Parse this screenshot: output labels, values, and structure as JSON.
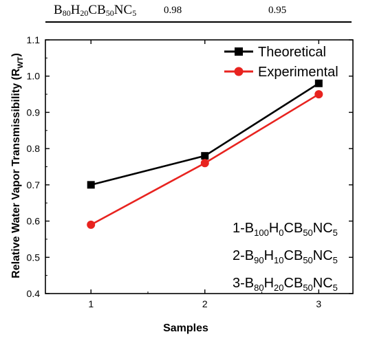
{
  "table_row": {
    "sample": {
      "b": "80",
      "h": "20",
      "cb": "50",
      "nc": "5"
    },
    "theoretical": "0.98",
    "experimental": "0.95"
  },
  "chart_data": {
    "type": "line",
    "xlabel": "Samples",
    "ylabel_main": "Relative Water Vapor Transmissibility (R",
    "ylabel_sub": "WT",
    "ylabel_end": ")",
    "x": [
      1,
      2,
      3
    ],
    "xlim": [
      0.6,
      3.3
    ],
    "ylim": [
      0.4,
      1.1
    ],
    "x_ticks": [
      "1",
      "2",
      "3"
    ],
    "y_ticks": [
      "0.4",
      "0.5",
      "0.6",
      "0.7",
      "0.8",
      "0.9",
      "1.0",
      "1.1"
    ],
    "series": [
      {
        "name": "Theoretical",
        "values": [
          0.7,
          0.78,
          0.98
        ],
        "color": "#000000",
        "marker": "square"
      },
      {
        "name": "Experimental",
        "values": [
          0.59,
          0.76,
          0.95
        ],
        "color": "#e8231f",
        "marker": "circle"
      }
    ],
    "legend_position": "top-right",
    "sample_labels": [
      {
        "index": "1",
        "b": "100",
        "h": "0",
        "cb": "50",
        "nc": "5"
      },
      {
        "index": "2",
        "b": "90",
        "h": "10",
        "cb": "50",
        "nc": "5"
      },
      {
        "index": "3",
        "b": "80",
        "h": "20",
        "cb": "50",
        "nc": "5"
      }
    ]
  }
}
